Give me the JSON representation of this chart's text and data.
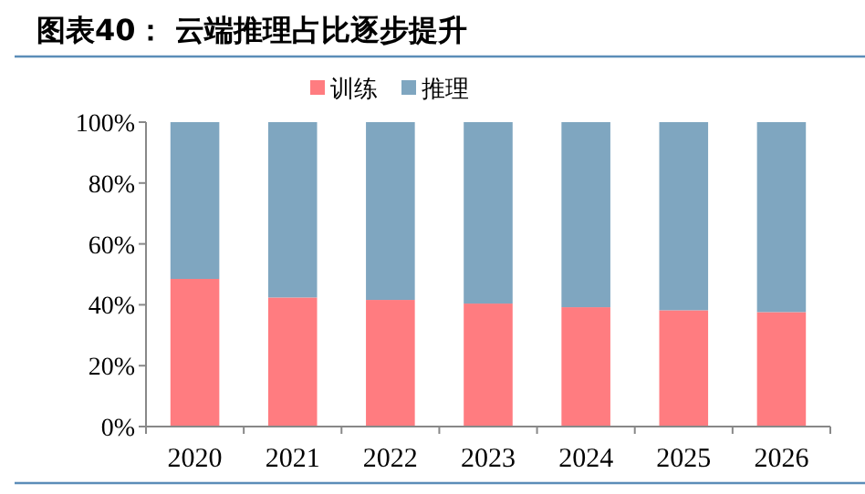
{
  "chart_data": {
    "type": "bar",
    "title": "图表40：  云端推理占比逐步提升",
    "categories": [
      "2020",
      "2021",
      "2022",
      "2023",
      "2024",
      "2025",
      "2026"
    ],
    "stacked": true,
    "series": [
      {
        "name": "训练",
        "color": "#ff7c80",
        "values": [
          48.5,
          42.4,
          41.6,
          40.4,
          39.2,
          38.2,
          37.6
        ]
      },
      {
        "name": "推理",
        "color": "#7fa6c0",
        "values": [
          51.5,
          57.6,
          58.4,
          59.6,
          60.8,
          61.8,
          62.4
        ]
      }
    ],
    "ylim": [
      0,
      100
    ],
    "yticks": [
      {
        "value": 0,
        "label": "0%"
      },
      {
        "value": 20,
        "label": "20%"
      },
      {
        "value": 40,
        "label": "40%"
      },
      {
        "value": 60,
        "label": "60%"
      },
      {
        "value": 80,
        "label": "80%"
      },
      {
        "value": 100,
        "label": "100%"
      }
    ],
    "grid": false,
    "legend": "top"
  }
}
